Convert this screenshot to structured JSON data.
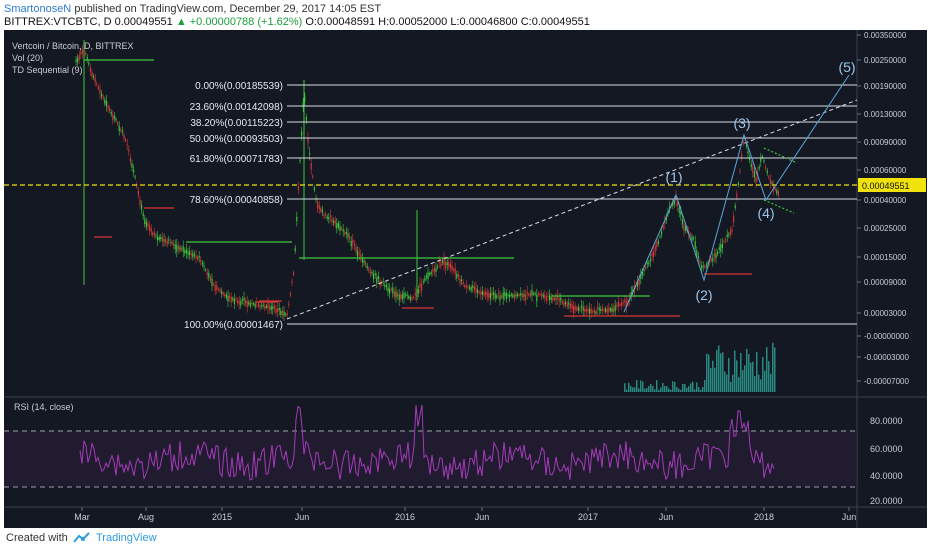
{
  "header": {
    "author": "SmartonoseN",
    "published": "published on TradingView.com, December 29, 2017 14:05 EST",
    "symbol": "BITTREX:VTCBTC, D",
    "last": "0.00049551",
    "change": "▲ +0.00000788 (+1.62%)",
    "o": "O:0.00048591",
    "h": "H:0.00052000",
    "l": "L:0.00046800",
    "c": "C:0.00049551"
  },
  "legend": {
    "title": "Vertcoin / Bitcoin, D, BITTREX",
    "vol": "Vol (20)",
    "td": "TD Sequential (9)"
  },
  "footer": {
    "created_with": "Created with",
    "brand": "TradingView"
  },
  "colors": {
    "background": "#141823",
    "fib": "#d9dce3",
    "price_line": "#f0e20a",
    "rsi": "#a43bb8",
    "volume": "#2a9d8f",
    "green": "#3ec63b",
    "red": "#d43636",
    "wave": "#5aa6d8"
  },
  "chart_data": {
    "type": "candlestick",
    "title": "Vertcoin / Bitcoin, D, BITTREX",
    "price_axis_ticks": [
      "0.00350000",
      "0.00250000",
      "0.00190000",
      "0.00130000",
      "0.00090000",
      "0.00060000",
      "0.00040000",
      "0.00025000",
      "0.00015000",
      "0.00009000",
      "0.00003000",
      "-0.00000000",
      "-0.00003000",
      "-0.00007000"
    ],
    "x_tick_labels": [
      "Mar",
      "Aug",
      "2015",
      "Jun",
      "2016",
      "Jun",
      "2017",
      "Jun",
      "2018",
      "Jun"
    ],
    "current_price_label": "0.00049551",
    "fibonacci": [
      {
        "label": "0.00%(0.00185539)",
        "value": 0.00185539
      },
      {
        "label": "23.60%(0.00142098)",
        "value": 0.00142098
      },
      {
        "label": "38.20%(0.00115223)",
        "value": 0.00115223
      },
      {
        "label": "50.00%(0.00093503)",
        "value": 0.00093503
      },
      {
        "label": "61.80%(0.00071783)",
        "value": 0.00071783
      },
      {
        "label": "78.60%(0.00040858)",
        "value": 0.00040858
      },
      {
        "label": "100.00%(0.00001467)",
        "value": 1.467e-05
      }
    ],
    "wave_labels": [
      "(1)",
      "(2)",
      "(3)",
      "(4)",
      "(5)"
    ],
    "rsi": {
      "title": "RSI (14, close)",
      "ticks": [
        "80.0000",
        "60.0000",
        "40.0000",
        "20.0000"
      ],
      "upper_band": 70,
      "lower_band": 30
    }
  }
}
